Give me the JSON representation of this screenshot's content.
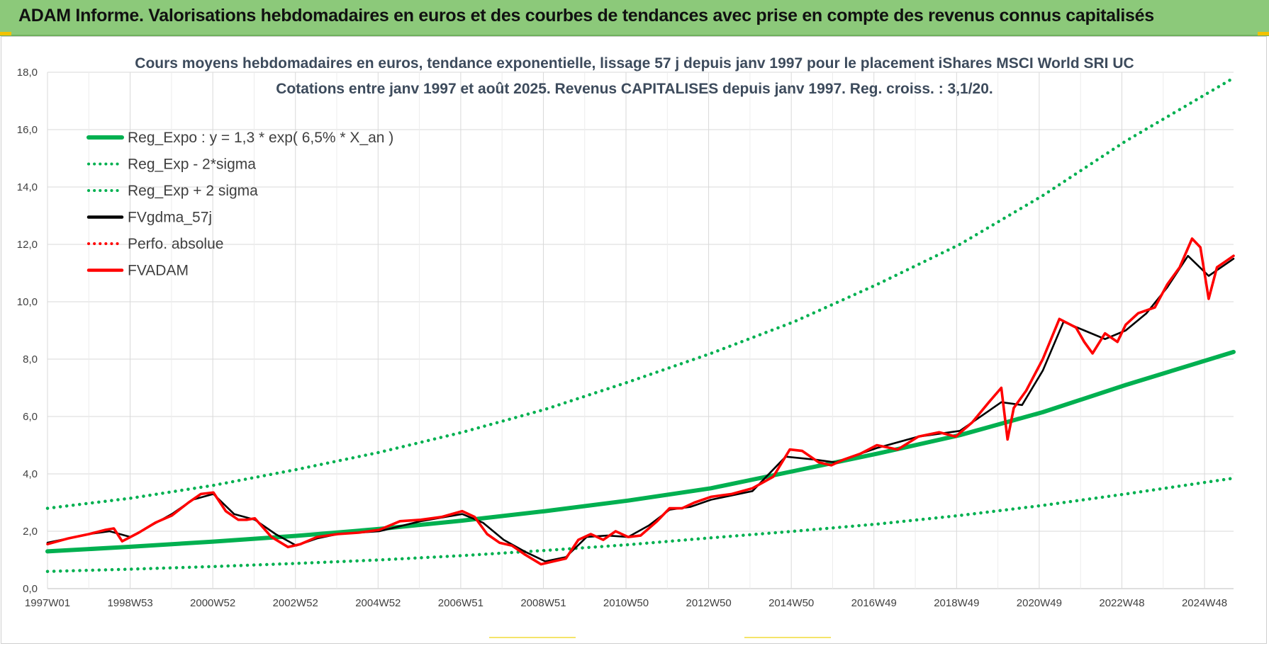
{
  "banner": {
    "title": "ADAM Informe. Valorisations hebdomadaires en euros et des courbes de tendances avec prise en compte des revenus connus capitalisés",
    "color": "#8cc97a"
  },
  "chart_data": {
    "type": "line",
    "title": "Cours moyens hebdomadaires en euros, tendance exponentielle, lissage 57 j depuis janv 1997 pour le placement iShares MSCI World SRI UC",
    "subtitle": "Cotations entre janv 1997 et août 2025.  Revenus CAPITALISES depuis janv 1997. Reg. croiss. : 3,1/20.",
    "xlabel": "",
    "ylabel": "",
    "ylim": [
      0,
      18
    ],
    "yticks": [
      "0,0",
      "2,0",
      "4,0",
      "6,0",
      "8,0",
      "10,0",
      "12,0",
      "14,0",
      "16,0",
      "18,0"
    ],
    "x_tick_labels": [
      "1997W01",
      "1998W53",
      "2000W52",
      "2002W52",
      "2004W52",
      "2006W51",
      "2008W51",
      "2010W50",
      "2012W50",
      "2014W50",
      "2016W49",
      "2018W49",
      "2020W49",
      "2022W48",
      "2024W48"
    ],
    "x_range_years": [
      1997.0,
      2025.6
    ],
    "grid": "vertical and horizontal",
    "legend_position": "top-left",
    "legend": [
      {
        "label": "Reg_Expo : y = 1,3 * exp( 6,5% *  X_an )",
        "color": "#00b050",
        "style": "solid-thick"
      },
      {
        "label": "Reg_Exp - 2*sigma",
        "color": "#00b050",
        "style": "dotted"
      },
      {
        "label": "Reg_Exp + 2 sigma",
        "color": "#00b050",
        "style": "dotted"
      },
      {
        "label": "FVgdma_57j",
        "color": "#000000",
        "style": "solid"
      },
      {
        "label": "Perfo. absolue",
        "color": "#ff0000",
        "style": "dotted"
      },
      {
        "label": "FVADAM",
        "color": "#ff0000",
        "style": "solid"
      }
    ],
    "series": [
      {
        "name": "Reg_Expo : y = 1,3 * exp( 6,5% *  X_an )",
        "x_years": [
          1997,
          1999,
          2001,
          2003,
          2005,
          2007,
          2009,
          2011,
          2013,
          2015,
          2017,
          2019,
          2021,
          2023,
          2025.6
        ],
        "values": [
          1.3,
          1.46,
          1.64,
          1.84,
          2.08,
          2.37,
          2.7,
          3.07,
          3.5,
          4.1,
          4.7,
          5.35,
          6.15,
          7.1,
          8.25
        ]
      },
      {
        "name": "Reg_Exp - 2*sigma",
        "x_years": [
          1997,
          1999,
          2001,
          2003,
          2005,
          2007,
          2009,
          2011,
          2013,
          2015,
          2017,
          2019,
          2021,
          2023,
          2025.6
        ],
        "values": [
          0.6,
          0.68,
          0.77,
          0.88,
          1.0,
          1.15,
          1.33,
          1.53,
          1.77,
          2.0,
          2.25,
          2.55,
          2.9,
          3.3,
          3.85
        ]
      },
      {
        "name": "Reg_Exp + 2 sigma",
        "x_years": [
          1997,
          1999,
          2001,
          2003,
          2005,
          2007,
          2009,
          2011,
          2013,
          2015,
          2017,
          2019,
          2021,
          2023,
          2025.6
        ],
        "values": [
          2.8,
          3.15,
          3.6,
          4.15,
          4.75,
          5.45,
          6.25,
          7.2,
          8.2,
          9.3,
          10.6,
          12.0,
          13.7,
          15.6,
          17.8
        ]
      },
      {
        "name": "FVADAM",
        "x_years": [
          1997.0,
          1997.5,
          1998.0,
          1998.4,
          1998.6,
          1998.8,
          1999.2,
          1999.6,
          2000.0,
          2000.4,
          2000.7,
          2001.0,
          2001.3,
          2001.6,
          2001.8,
          2002.0,
          2002.4,
          2002.8,
          2003.1,
          2003.5,
          2004.0,
          2004.5,
          2005.0,
          2005.5,
          2006.0,
          2006.5,
          2007.0,
          2007.3,
          2007.6,
          2007.9,
          2008.2,
          2008.5,
          2008.9,
          2009.2,
          2009.5,
          2009.8,
          2010.1,
          2010.4,
          2010.7,
          2011.0,
          2011.3,
          2011.7,
          2012.0,
          2012.3,
          2012.6,
          2013.0,
          2013.5,
          2014.0,
          2014.5,
          2014.9,
          2015.2,
          2015.6,
          2015.9,
          2016.2,
          2016.6,
          2017.0,
          2017.5,
          2018.0,
          2018.5,
          2018.9,
          2019.3,
          2019.7,
          2020.0,
          2020.15,
          2020.3,
          2020.6,
          2021.0,
          2021.4,
          2021.8,
          2022.0,
          2022.2,
          2022.5,
          2022.8,
          2023.0,
          2023.3,
          2023.7,
          2024.0,
          2024.3,
          2024.6,
          2024.8,
          2025.0,
          2025.2,
          2025.4,
          2025.6
        ],
        "values": [
          1.55,
          1.75,
          1.9,
          2.05,
          2.1,
          1.65,
          1.95,
          2.3,
          2.55,
          3.0,
          3.3,
          3.35,
          2.7,
          2.4,
          2.4,
          2.45,
          1.8,
          1.45,
          1.55,
          1.8,
          1.9,
          1.95,
          2.05,
          2.35,
          2.4,
          2.5,
          2.7,
          2.5,
          1.9,
          1.6,
          1.5,
          1.2,
          0.85,
          0.95,
          1.05,
          1.7,
          1.9,
          1.7,
          2.0,
          1.8,
          1.85,
          2.35,
          2.8,
          2.8,
          3.0,
          3.2,
          3.3,
          3.5,
          3.9,
          4.85,
          4.8,
          4.4,
          4.3,
          4.5,
          4.7,
          5.0,
          4.85,
          5.3,
          5.45,
          5.3,
          5.8,
          6.5,
          7.0,
          5.2,
          6.3,
          6.9,
          8.0,
          9.4,
          9.1,
          8.6,
          8.2,
          8.9,
          8.6,
          9.2,
          9.6,
          9.8,
          10.6,
          11.2,
          12.2,
          11.9,
          10.1,
          11.2,
          11.4,
          11.6
        ]
      },
      {
        "name": "FVgdma_57j",
        "x_years": [
          1997.0,
          1997.5,
          1998.0,
          1998.5,
          1999.0,
          1999.5,
          2000.0,
          2000.5,
          2001.0,
          2001.5,
          2002.0,
          2002.5,
          2003.0,
          2003.5,
          2004.0,
          2005.0,
          2006.0,
          2007.0,
          2007.5,
          2008.0,
          2008.5,
          2009.0,
          2009.5,
          2010.0,
          2010.5,
          2011.0,
          2011.5,
          2012.0,
          2012.5,
          2013.0,
          2014.0,
          2014.8,
          2015.5,
          2016.0,
          2017.0,
          2018.0,
          2019.0,
          2020.0,
          2020.5,
          2021.0,
          2021.5,
          2022.0,
          2022.5,
          2023.0,
          2023.5,
          2024.0,
          2024.5,
          2025.0,
          2025.6
        ],
        "values": [
          1.6,
          1.75,
          1.9,
          2.0,
          1.8,
          2.2,
          2.6,
          3.1,
          3.3,
          2.6,
          2.4,
          1.9,
          1.5,
          1.75,
          1.9,
          2.0,
          2.35,
          2.6,
          2.3,
          1.7,
          1.3,
          0.95,
          1.1,
          1.8,
          1.85,
          1.8,
          2.2,
          2.75,
          2.85,
          3.1,
          3.4,
          4.6,
          4.5,
          4.4,
          4.9,
          5.3,
          5.5,
          6.5,
          6.4,
          7.6,
          9.3,
          9.0,
          8.7,
          9.0,
          9.6,
          10.5,
          11.6,
          10.9,
          11.5
        ]
      }
    ]
  }
}
